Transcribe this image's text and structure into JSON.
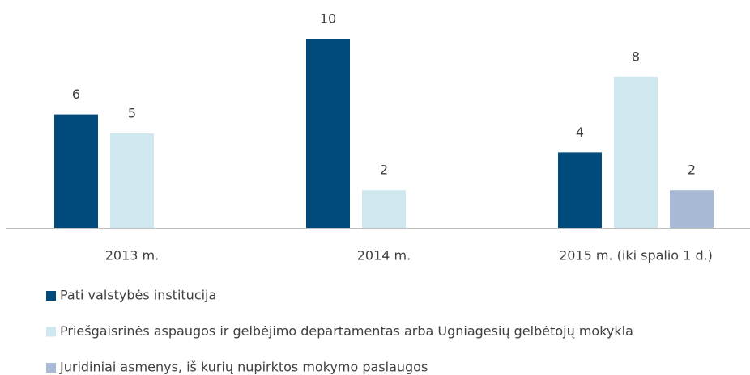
{
  "chart_data": {
    "type": "bar",
    "categories": [
      "2013 m.",
      "2014 m.",
      "2015 m. (iki spalio 1 d.)"
    ],
    "series": [
      {
        "name": "Pati valstybės institucija",
        "color": "#004b7c",
        "values": [
          6,
          10,
          4
        ]
      },
      {
        "name": "Priešgaisrinės aspaugos ir gelbėjimo departamentas arba Ugniagesių gelbėtojų mokykla",
        "color": "#cfe8ef",
        "values": [
          5,
          2,
          8
        ]
      },
      {
        "name": "Juridiniai asmenys, iš kurių nupirktos mokymo paslaugos",
        "color": "#a8b9d6",
        "values": [
          null,
          null,
          2
        ]
      }
    ],
    "ylim": [
      0,
      10
    ]
  }
}
